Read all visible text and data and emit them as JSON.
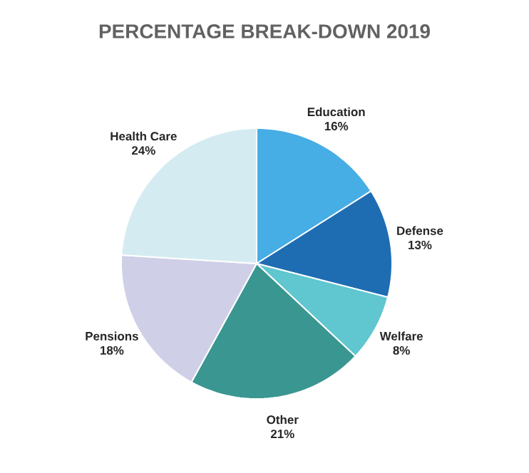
{
  "chart_data": {
    "type": "pie",
    "title": "PERCENTAGE BREAK-DOWN 2019",
    "categories": [
      "Education",
      "Defense",
      "Welfare",
      "Other",
      "Pensions",
      "Health Care"
    ],
    "values": [
      16,
      13,
      8,
      21,
      18,
      24
    ],
    "value_labels": [
      "16%",
      "13%",
      "8%",
      "21%",
      "18%",
      "24%"
    ],
    "colors": [
      "#47ade5",
      "#1e6db3",
      "#60c6cf",
      "#3a9691",
      "#cfcfe8",
      "#d4ebf1"
    ]
  }
}
